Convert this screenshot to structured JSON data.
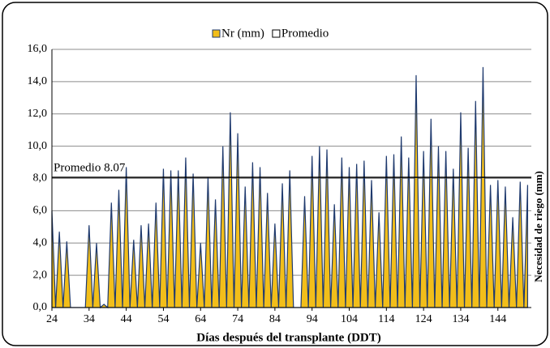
{
  "chart_data": {
    "type": "area",
    "x_label": "Días después del transplante (DDT)",
    "y_label": "Necesidad de riego (mm)",
    "annotation": "Promedio 8.07",
    "xlim": [
      24,
      153
    ],
    "ylim": [
      0,
      16
    ],
    "xticks": [
      24,
      34,
      44,
      54,
      64,
      74,
      84,
      94,
      104,
      114,
      124,
      134,
      144
    ],
    "yticks": [
      {
        "value": 0,
        "label": "0,0"
      },
      {
        "value": 2,
        "label": "2,0"
      },
      {
        "value": 4,
        "label": "4,0"
      },
      {
        "value": 6,
        "label": "6,0"
      },
      {
        "value": 8,
        "label": "8,0"
      },
      {
        "value": 10,
        "label": "10,0"
      },
      {
        "value": 12,
        "label": "12,0"
      },
      {
        "value": 14,
        "label": "14,0"
      },
      {
        "value": 16,
        "label": "16,0"
      }
    ],
    "grid": true,
    "legend": "top",
    "x": [
      24,
      25,
      26,
      27,
      28,
      29,
      30,
      31,
      32,
      33,
      34,
      35,
      36,
      37,
      38,
      39,
      40,
      41,
      42,
      43,
      44,
      45,
      46,
      47,
      48,
      49,
      50,
      51,
      52,
      53,
      54,
      55,
      56,
      57,
      58,
      59,
      60,
      61,
      62,
      63,
      64,
      65,
      66,
      67,
      68,
      69,
      70,
      71,
      72,
      73,
      74,
      75,
      76,
      77,
      78,
      79,
      80,
      81,
      82,
      83,
      84,
      85,
      86,
      87,
      88,
      89,
      90,
      91,
      92,
      93,
      94,
      95,
      96,
      97,
      98,
      99,
      100,
      101,
      102,
      103,
      104,
      105,
      106,
      107,
      108,
      109,
      110,
      111,
      112,
      113,
      114,
      115,
      116,
      117,
      118,
      119,
      120,
      121,
      122,
      123,
      124,
      125,
      126,
      127,
      128,
      129,
      130,
      131,
      132,
      133,
      134,
      135,
      136,
      137,
      138,
      139,
      140,
      141,
      142,
      143,
      144,
      145,
      146,
      147,
      148,
      149,
      150,
      151,
      152
    ],
    "series": [
      {
        "name": "Nr (mm)",
        "color": "#f2be1a",
        "stroke": "#1f3a6e",
        "values": [
          6.0,
          0,
          4.7,
          0,
          4.1,
          0,
          0,
          0,
          0,
          0,
          5.1,
          0,
          4.0,
          0,
          0.2,
          0,
          6.5,
          0,
          7.3,
          0,
          8.7,
          0,
          4.2,
          0,
          5.1,
          0,
          5.2,
          0,
          6.5,
          0,
          8.6,
          0,
          8.5,
          0,
          8.5,
          0,
          9.3,
          0,
          8.3,
          0,
          4.0,
          0,
          8.1,
          0,
          6.7,
          0,
          10.0,
          0,
          12.1,
          0,
          10.8,
          0,
          7.5,
          0,
          9.0,
          0,
          8.7,
          0,
          7.1,
          0,
          5.2,
          0,
          7.7,
          0,
          8.5,
          0,
          0,
          0,
          6.9,
          0,
          9.4,
          0,
          10.0,
          0,
          9.8,
          0,
          6.4,
          0,
          9.3,
          0,
          8.7,
          0,
          8.9,
          0,
          9.1,
          0,
          7.9,
          0,
          5.9,
          0,
          9.4,
          0,
          9.5,
          0,
          10.6,
          0,
          9.3,
          0,
          14.4,
          0,
          9.7,
          0,
          11.7,
          0,
          10.0,
          0,
          9.7,
          0,
          8.6,
          0,
          12.1,
          0,
          9.9,
          0,
          12.8,
          0,
          14.9,
          0,
          7.6,
          0,
          7.9,
          0,
          7.5,
          0,
          5.6,
          0,
          7.8,
          0,
          7.6
        ]
      },
      {
        "name": "Promedio",
        "color": "#000000",
        "value": 8.07
      }
    ]
  }
}
